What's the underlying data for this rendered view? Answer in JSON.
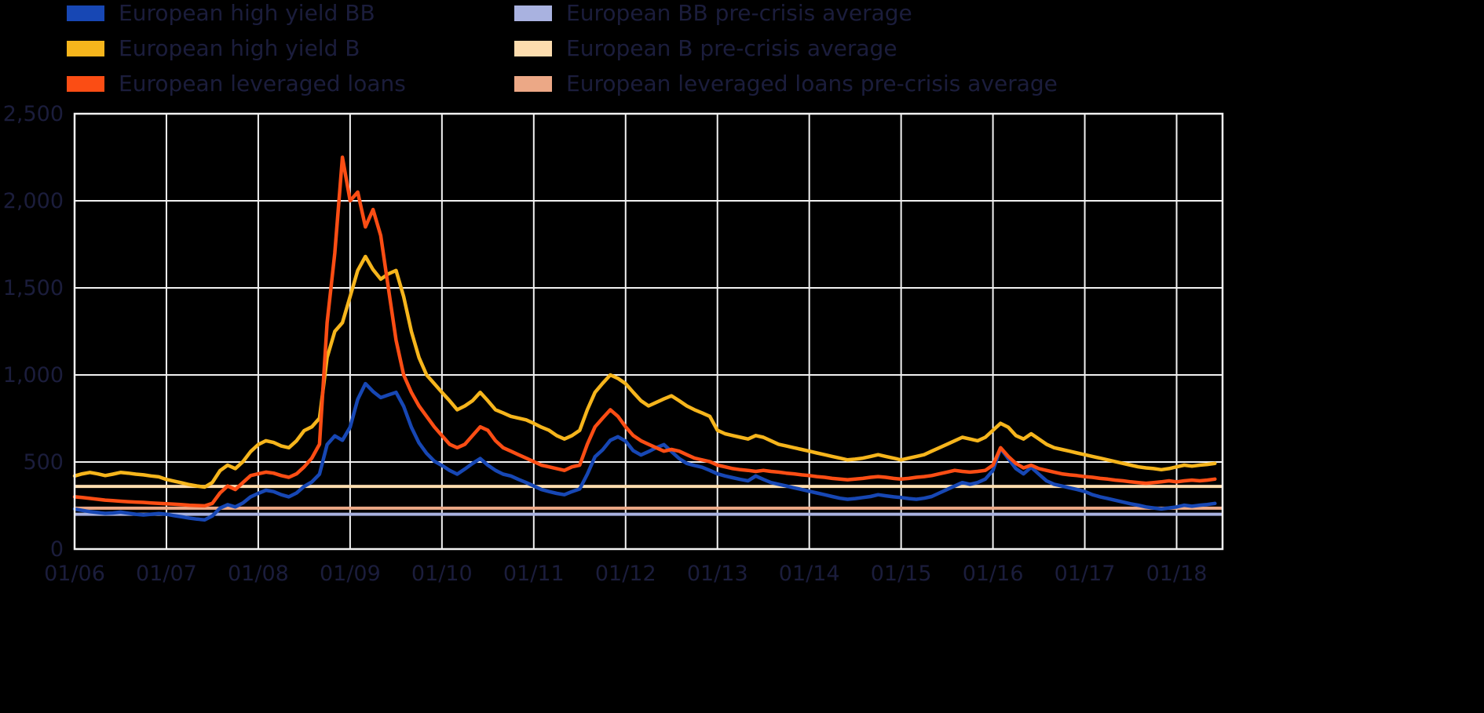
{
  "colors": {
    "background": "#000000",
    "text": "#1b1d3c",
    "grid": "#f2f2f2",
    "hy_bb": "#1747b4",
    "hy_b": "#f6b51c",
    "lev_loans": "#fb4d14",
    "bb_avg": "#a9b2e0",
    "b_avg": "#fcdcae",
    "loans_avg": "#eca886"
  },
  "legend": {
    "items": [
      {
        "label": "European high yield BB",
        "color": "#1747b4"
      },
      {
        "label": "European high yield B",
        "color": "#f6b51c"
      },
      {
        "label": "European leveraged loans",
        "color": "#fb4d14"
      },
      {
        "label": "European BB pre-crisis average",
        "color": "#a9b2e0"
      },
      {
        "label": "European B pre-crisis average",
        "color": "#fcdcae"
      },
      {
        "label": "European leveraged loans pre-crisis average",
        "color": "#eca886"
      }
    ]
  },
  "chart_data": {
    "type": "line",
    "title": "",
    "xlabel": "",
    "ylabel": "",
    "x_domain": [
      2006.0,
      2018.5
    ],
    "ylim": [
      0,
      2500
    ],
    "grid": true,
    "legend_position": "top",
    "y_ticks": [
      {
        "label": "0",
        "value": 0
      },
      {
        "label": "500",
        "value": 500
      },
      {
        "label": "1,000",
        "value": 1000
      },
      {
        "label": "1,500",
        "value": 1500
      },
      {
        "label": "2,000",
        "value": 2000
      },
      {
        "label": "2,500",
        "value": 2500
      }
    ],
    "x_ticks": [
      {
        "label": "01/06",
        "value": 2006
      },
      {
        "label": "01/07",
        "value": 2007
      },
      {
        "label": "01/08",
        "value": 2008
      },
      {
        "label": "01/09",
        "value": 2009
      },
      {
        "label": "01/10",
        "value": 2010
      },
      {
        "label": "01/11",
        "value": 2011
      },
      {
        "label": "01/12",
        "value": 2012
      },
      {
        "label": "01/13",
        "value": 2013
      },
      {
        "label": "01/14",
        "value": 2014
      },
      {
        "label": "01/15",
        "value": 2015
      },
      {
        "label": "01/16",
        "value": 2016
      },
      {
        "label": "01/17",
        "value": 2017
      },
      {
        "label": "01/18",
        "value": 2018
      }
    ],
    "x_monthly_start": 2006.0,
    "series": [
      {
        "name": "European high yield BB",
        "color": "#1747b4",
        "values": [
          230,
          222,
          215,
          210,
          205,
          207,
          212,
          206,
          200,
          196,
          200,
          204,
          200,
          192,
          185,
          178,
          172,
          168,
          190,
          235,
          255,
          242,
          265,
          300,
          320,
          338,
          330,
          312,
          300,
          322,
          360,
          385,
          430,
          600,
          650,
          625,
          700,
          860,
          950,
          905,
          870,
          885,
          900,
          820,
          700,
          610,
          550,
          505,
          480,
          452,
          430,
          460,
          492,
          520,
          482,
          452,
          430,
          420,
          400,
          382,
          362,
          342,
          330,
          320,
          312,
          330,
          345,
          430,
          530,
          570,
          625,
          645,
          620,
          565,
          540,
          560,
          582,
          600,
          560,
          520,
          492,
          480,
          470,
          452,
          432,
          420,
          410,
          400,
          392,
          420,
          400,
          382,
          372,
          362,
          352,
          342,
          332,
          322,
          312,
          302,
          292,
          286,
          290,
          296,
          302,
          312,
          306,
          300,
          296,
          290,
          286,
          292,
          302,
          322,
          342,
          362,
          382,
          372,
          382,
          402,
          452,
          578,
          520,
          462,
          432,
          470,
          430,
          392,
          372,
          362,
          352,
          342,
          330,
          312,
          300,
          290,
          280,
          270,
          260,
          252,
          242,
          236,
          230,
          236,
          242,
          252,
          246,
          252,
          256,
          262
        ]
      },
      {
        "name": "European high yield B",
        "color": "#f6b51c",
        "values": [
          420,
          432,
          440,
          432,
          422,
          430,
          440,
          436,
          430,
          426,
          420,
          415,
          400,
          390,
          380,
          370,
          362,
          356,
          382,
          450,
          482,
          462,
          502,
          560,
          600,
          622,
          612,
          592,
          582,
          622,
          680,
          702,
          752,
          1100,
          1250,
          1300,
          1450,
          1600,
          1680,
          1605,
          1550,
          1580,
          1600,
          1450,
          1250,
          1100,
          1000,
          950,
          900,
          852,
          800,
          822,
          852,
          900,
          852,
          800,
          782,
          762,
          752,
          742,
          722,
          700,
          682,
          652,
          632,
          652,
          682,
          800,
          900,
          952,
          1000,
          980,
          950,
          900,
          852,
          822,
          842,
          862,
          880,
          852,
          822,
          800,
          782,
          762,
          682,
          662,
          652,
          642,
          632,
          652,
          642,
          622,
          602,
          592,
          582,
          572,
          562,
          552,
          542,
          532,
          522,
          512,
          516,
          522,
          532,
          542,
          532,
          522,
          512,
          522,
          532,
          542,
          562,
          582,
          602,
          622,
          642,
          632,
          622,
          642,
          682,
          722,
          700,
          652,
          632,
          662,
          632,
          602,
          582,
          572,
          562,
          552,
          542,
          532,
          522,
          512,
          502,
          492,
          482,
          472,
          466,
          462,
          456,
          462,
          472,
          482,
          476,
          482,
          486,
          492
        ]
      },
      {
        "name": "European leveraged loans",
        "color": "#fb4d14",
        "values": [
          300,
          296,
          291,
          286,
          281,
          278,
          275,
          272,
          270,
          268,
          265,
          262,
          260,
          258,
          255,
          252,
          250,
          248,
          262,
          322,
          362,
          342,
          382,
          422,
          432,
          442,
          436,
          422,
          412,
          432,
          472,
          522,
          602,
          1300,
          1700,
          2250,
          2000,
          2050,
          1850,
          1950,
          1800,
          1500,
          1200,
          1000,
          900,
          822,
          762,
          702,
          652,
          602,
          582,
          602,
          652,
          702,
          682,
          622,
          582,
          562,
          542,
          522,
          502,
          482,
          472,
          462,
          452,
          472,
          482,
          602,
          702,
          752,
          800,
          762,
          702,
          652,
          622,
          602,
          582,
          562,
          572,
          562,
          542,
          522,
          512,
          502,
          482,
          472,
          462,
          456,
          452,
          446,
          452,
          446,
          442,
          436,
          432,
          426,
          422,
          416,
          412,
          406,
          402,
          398,
          402,
          406,
          412,
          416,
          412,
          406,
          402,
          406,
          412,
          416,
          422,
          432,
          442,
          452,
          446,
          442,
          446,
          452,
          482,
          582,
          532,
          492,
          466,
          482,
          462,
          452,
          442,
          432,
          426,
          422,
          416,
          412,
          406,
          402,
          396,
          392,
          386,
          382,
          378,
          382,
          386,
          392,
          386,
          392,
          396,
          392,
          396,
          402
        ]
      }
    ],
    "hlines": [
      {
        "name": "European BB pre-crisis average",
        "color": "#a9b2e0",
        "value": 200
      },
      {
        "name": "European B pre-crisis average",
        "color": "#fcdcae",
        "value": 360
      },
      {
        "name": "European leveraged loans pre-crisis average",
        "color": "#eca886",
        "value": 235
      }
    ]
  }
}
